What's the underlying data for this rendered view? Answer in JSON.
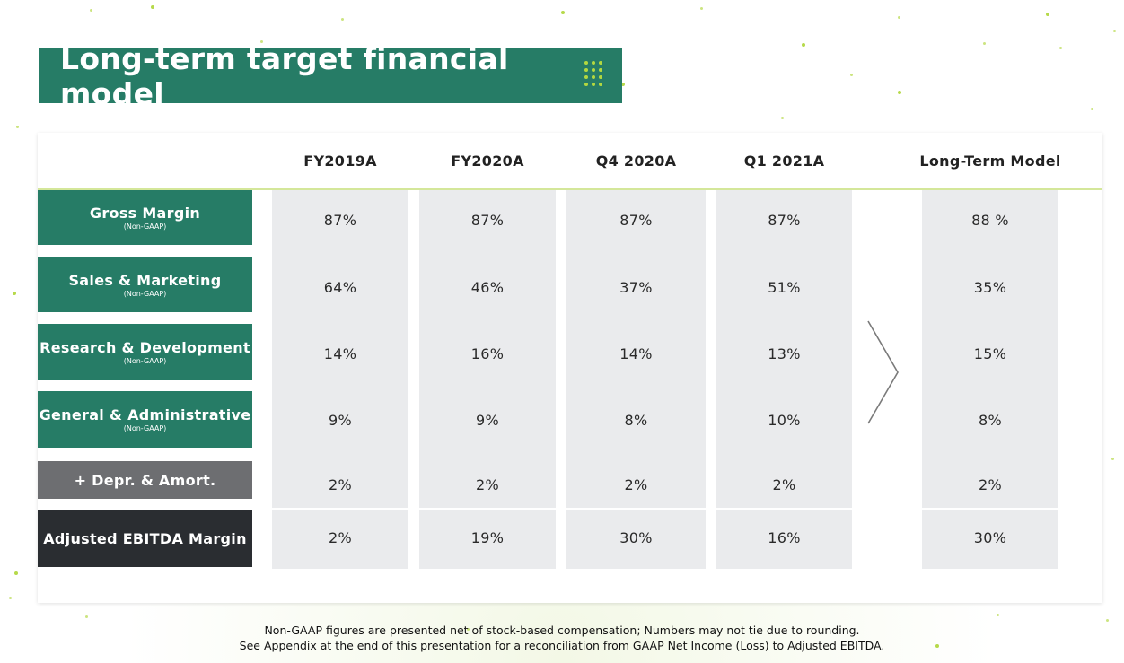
{
  "title": "Long-term target financial model",
  "columns": [
    "FY2019A",
    "FY2020A",
    "Q4 2020A",
    "Q1 2021A",
    "Long-Term Model"
  ],
  "rows": [
    {
      "label": "Gross Margin",
      "sub": "(Non-GAAP)",
      "style": "green",
      "values": [
        "87%",
        "87%",
        "87%",
        "87%",
        "88 %"
      ]
    },
    {
      "label": "Sales & Marketing",
      "sub": "(Non-GAAP)",
      "style": "green",
      "values": [
        "64%",
        "46%",
        "37%",
        "51%",
        "35%"
      ]
    },
    {
      "label": "Research & Development",
      "sub": "(Non-GAAP)",
      "style": "green",
      "values": [
        "14%",
        "16%",
        "14%",
        "13%",
        "15%"
      ]
    },
    {
      "label": "General & Administrative",
      "sub": "(Non-GAAP)",
      "style": "green",
      "values": [
        "9%",
        "9%",
        "8%",
        "10%",
        "8%"
      ]
    },
    {
      "label": "+ Depr. & Amort.",
      "sub": "",
      "style": "gray",
      "values": [
        "2%",
        "2%",
        "2%",
        "2%",
        "2%"
      ]
    },
    {
      "label": "Adjusted EBITDA Margin",
      "sub": "",
      "style": "dark",
      "values": [
        "2%",
        "19%",
        "30%",
        "16%",
        "30%"
      ]
    }
  ],
  "footnotes": [
    "Non-GAAP figures are presented net of stock-based compensation; Numbers may not tie due to rounding.",
    "See Appendix at the end of this presentation for a reconciliation from GAAP Net Income (Loss) to Adjusted EBITDA."
  ],
  "colors": {
    "brand_green": "#267c66",
    "accent_lime": "#b3d83f",
    "gray_label": "#6d6e71",
    "dark_label": "#2a2d31",
    "column_bg": "#eaebed"
  },
  "icons": [
    "dot-grid-icon",
    "chevron-right-icon"
  ]
}
